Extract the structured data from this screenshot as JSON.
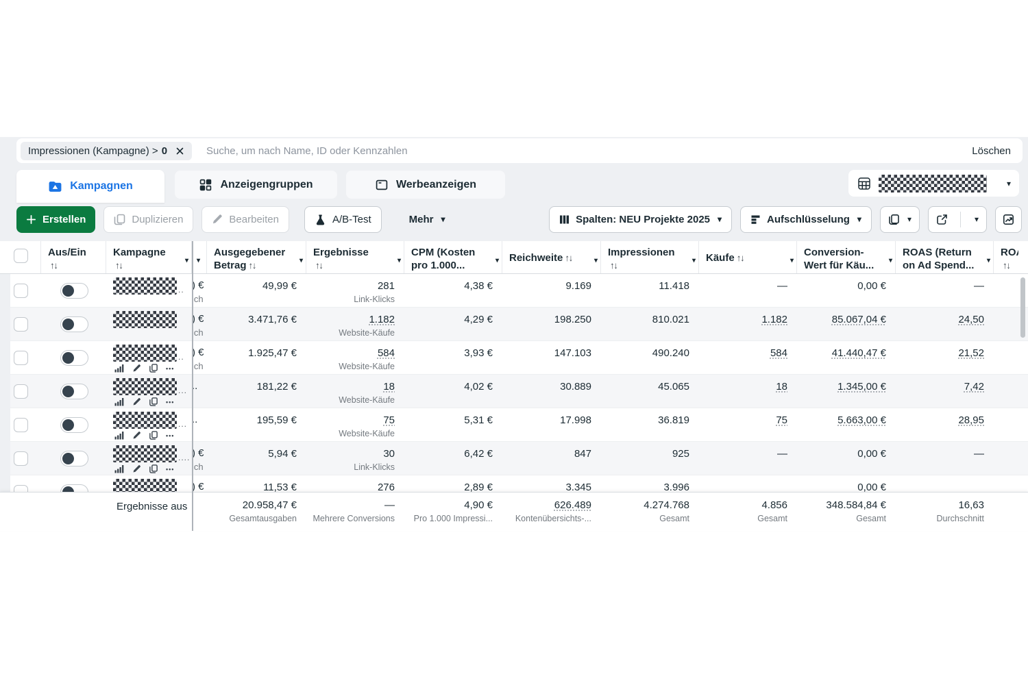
{
  "filter_bar": {
    "chip_label": "Impressionen (Kampagne) >",
    "chip_value": "0",
    "search_placeholder": "Suche, um nach Name, ID oder Kennzahlen",
    "clear_label": "Löschen"
  },
  "tabs": {
    "items": [
      {
        "id": "kampagnen",
        "label": "Kampagnen",
        "active": true
      },
      {
        "id": "anzeigengruppen",
        "label": "Anzeigengruppen",
        "active": false
      },
      {
        "id": "werbeanzeigen",
        "label": "Werbeanzeigen",
        "active": false
      }
    ],
    "account_selector_redacted": true
  },
  "toolbar": {
    "create_label": "Erstellen",
    "duplicate_label": "Duplizieren",
    "edit_label": "Bearbeiten",
    "ab_test_label": "A/B-Test",
    "more_label": "Mehr",
    "columns_label": "Spalten: NEU Projekte 2025",
    "breakdown_label": "Aufschlüsselung"
  },
  "colors": {
    "accent_blue": "#1b74e4",
    "create_green": "#0b7b40",
    "band_gray": "#eef0f3",
    "dark_text": "#1c2b33"
  },
  "icons": {
    "toolbar": [
      "plus-icon",
      "duplicate-icon",
      "pencil-icon",
      "flask-icon",
      "chevron-down-icon",
      "columns-icon",
      "breakdown-icon",
      "report-icon",
      "export-icon",
      "chart-icon"
    ],
    "row_actions": [
      "bar-chart-icon",
      "pencil-icon",
      "duplicate-icon",
      "more-options-icon"
    ],
    "tabs": [
      "campaigns-icon",
      "adsets-grid-icon",
      "ads-frame-icon",
      "table-grid-icon"
    ]
  },
  "table": {
    "columns": [
      {
        "id": "select",
        "type": "check"
      },
      {
        "id": "status",
        "line1": "Aus/Ein",
        "sort": "below"
      },
      {
        "id": "kampagne",
        "line1": "Kampagne",
        "sort": "below",
        "caret": true
      },
      {
        "id": "budget",
        "caret": true
      },
      {
        "id": "spend",
        "line1": "Ausgegebener",
        "line2": "Betrag",
        "sort": "line2",
        "caret": true
      },
      {
        "id": "ergebnisse",
        "line1": "Ergebnisse",
        "sort": "below",
        "caret": true
      },
      {
        "id": "cpm",
        "line1": "CPM (Kosten",
        "line2": "pro 1.000...",
        "caret": true
      },
      {
        "id": "reichweite",
        "line1": "Reichweite",
        "sort": "line1",
        "caret": true
      },
      {
        "id": "impressionen",
        "line1": "Impressionen",
        "sort": "below",
        "caret": true
      },
      {
        "id": "kaeufe",
        "line1": "Käufe",
        "sort": "line1",
        "caret": true
      },
      {
        "id": "conversion_wert",
        "line1": "Conversion-",
        "line2": "Wert für Käu...",
        "caret": true
      },
      {
        "id": "roas",
        "line1": "ROAS (Return",
        "line2": "on Ad Spend...",
        "caret": true
      },
      {
        "id": "roas2",
        "line1": "ROAS",
        "sort": "below"
      }
    ],
    "rows": [
      {
        "status": "off",
        "kampagne": {
          "redacted": true,
          "suffix": "..",
          "actions": false
        },
        "budget": {
          "line1": ") €",
          "line2": "ich"
        },
        "spend": "49,99 €",
        "ergebnisse": {
          "value": "281",
          "label": "Link-Klicks",
          "link": false
        },
        "cpm": "4,38 €",
        "reichweite": "9.169",
        "impressionen": "11.418",
        "kaeufe": {
          "value": "—",
          "link": false
        },
        "conversion_wert": {
          "value": "0,00 €",
          "link": false
        },
        "roas": {
          "value": "—",
          "link": false
        }
      },
      {
        "status": "off",
        "kampagne": {
          "redacted": true,
          "suffix": "",
          "actions": false
        },
        "budget": {
          "line1": ") €",
          "line2": "ich"
        },
        "spend": "3.471,76 €",
        "ergebnisse": {
          "value": "1.182",
          "label": "Website-Käufe",
          "link": true
        },
        "cpm": "4,29 €",
        "reichweite": "198.250",
        "impressionen": "810.021",
        "kaeufe": {
          "value": "1.182",
          "link": true
        },
        "conversion_wert": {
          "value": "85.067,04 €",
          "link": true
        },
        "roas": {
          "value": "24,50",
          "link": true
        }
      },
      {
        "status": "off",
        "kampagne": {
          "redacted": true,
          "suffix": "..",
          "actions": true
        },
        "budget": {
          "line1": ") €",
          "line2": "ich"
        },
        "spend": "1.925,47 €",
        "ergebnisse": {
          "value": "584",
          "label": "Website-Käufe",
          "link": true
        },
        "cpm": "3,93 €",
        "reichweite": "147.103",
        "impressionen": "490.240",
        "kaeufe": {
          "value": "584",
          "link": true
        },
        "conversion_wert": {
          "value": "41.440,47 €",
          "link": true
        },
        "roas": {
          "value": "21,52",
          "link": true
        }
      },
      {
        "status": "off",
        "kampagne": {
          "redacted": true,
          "suffix": "...",
          "actions": true
        },
        "budget": {
          "line1": "..",
          "line2": ""
        },
        "spend": "181,22 €",
        "ergebnisse": {
          "value": "18",
          "label": "Website-Käufe",
          "link": true
        },
        "cpm": "4,02 €",
        "reichweite": "30.889",
        "impressionen": "45.065",
        "kaeufe": {
          "value": "18",
          "link": true
        },
        "conversion_wert": {
          "value": "1.345,00 €",
          "link": true
        },
        "roas": {
          "value": "7,42",
          "link": true
        }
      },
      {
        "status": "off",
        "kampagne": {
          "redacted": true,
          "suffix": "...",
          "actions": true
        },
        "budget": {
          "line1": "..",
          "line2": ""
        },
        "spend": "195,59 €",
        "ergebnisse": {
          "value": "75",
          "label": "Website-Käufe",
          "link": true
        },
        "cpm": "5,31 €",
        "reichweite": "17.998",
        "impressionen": "36.819",
        "kaeufe": {
          "value": "75",
          "link": true
        },
        "conversion_wert": {
          "value": "5.663,00 €",
          "link": true
        },
        "roas": {
          "value": "28,95",
          "link": true
        }
      },
      {
        "status": "off",
        "kampagne": {
          "redacted": true,
          "suffix": "....",
          "actions": true
        },
        "budget": {
          "line1": ") €",
          "line2": "ich"
        },
        "spend": "5,94 €",
        "ergebnisse": {
          "value": "30",
          "label": "Link-Klicks",
          "link": false
        },
        "cpm": "6,42 €",
        "reichweite": "847",
        "impressionen": "925",
        "kaeufe": {
          "value": "—",
          "link": false
        },
        "conversion_wert": {
          "value": "0,00 €",
          "link": false
        },
        "roas": {
          "value": "—",
          "link": false
        }
      },
      {
        "status": "off",
        "kampagne": {
          "redacted": true,
          "suffix": "..",
          "actions": true
        },
        "budget": {
          "line1": ") €",
          "line2": "ich"
        },
        "spend": "11,53 €",
        "ergebnisse": {
          "value": "276",
          "label": "",
          "link": false
        },
        "cpm": "2,89 €",
        "reichweite": "3.345",
        "impressionen": "3.996",
        "kaeufe": {
          "value": "",
          "link": false
        },
        "conversion_wert": {
          "value": "0,00 €",
          "link": false
        },
        "roas": {
          "value": "",
          "link": false
        }
      }
    ],
    "summary": {
      "row_label": "Ergebnisse aus",
      "cells": {
        "spend": {
          "value": "20.958,47 €",
          "label": "Gesamtausgaben",
          "link": false
        },
        "ergebnisse": {
          "value": "—",
          "label": "Mehrere Conversions",
          "link": false
        },
        "cpm": {
          "value": "4,90 €",
          "label": "Pro 1.000 Impressi...",
          "link": false
        },
        "reichweite": {
          "value": "626.489",
          "label": "Kontenübersichts-...",
          "link": true
        },
        "impressionen": {
          "value": "4.274.768",
          "label": "Gesamt",
          "link": false
        },
        "kaeufe": {
          "value": "4.856",
          "label": "Gesamt",
          "link": false
        },
        "conversion_wert": {
          "value": "348.584,84 €",
          "label": "Gesamt",
          "link": false
        },
        "roas": {
          "value": "16,63",
          "label": "Durchschnitt",
          "link": false
        }
      }
    }
  }
}
